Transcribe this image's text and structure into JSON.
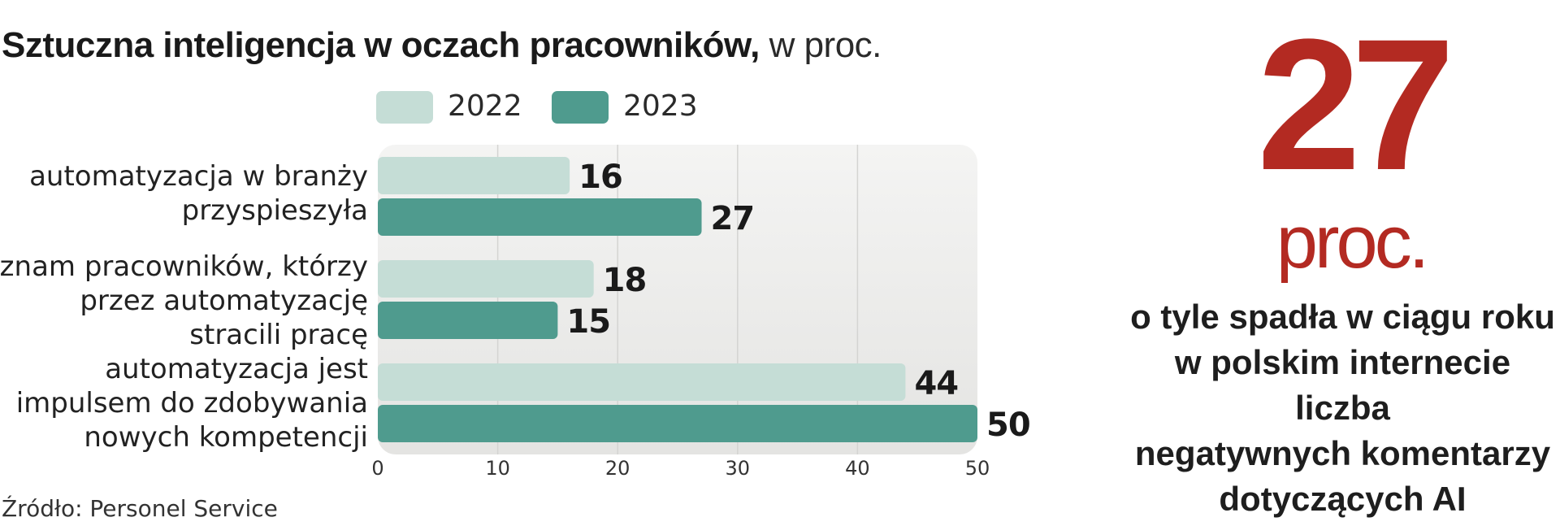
{
  "title_bold": "Sztuczna inteligencja w oczach pracowników,",
  "title_light": " w proc.",
  "source": "Źródło: Personel Service",
  "highlight": {
    "number": "27",
    "unit": "proc.",
    "lines": [
      "o tyle spadła w ciągu roku",
      "w polskim internecie",
      "liczba",
      "negatywnych komentarzy",
      "dotyczących AI"
    ],
    "color": "#b32a22"
  },
  "chart_data": {
    "type": "bar",
    "orientation": "horizontal",
    "categories": [
      [
        "automatyzacja w branży",
        "przyspieszyła"
      ],
      [
        "znam pracowników, którzy",
        "przez automatyzację",
        "stracili pracę"
      ],
      [
        "automatyzacja jest",
        "impulsem do zdobywania",
        "nowych kompetencji"
      ]
    ],
    "series": [
      {
        "name": "2022",
        "values": [
          16,
          18,
          44
        ],
        "color": "#c5ddd6"
      },
      {
        "name": "2023",
        "values": [
          27,
          15,
          50
        ],
        "color": "#4f9b8e"
      }
    ],
    "xlim": [
      0,
      50
    ],
    "xticks": [
      0,
      10,
      20,
      30,
      40,
      50
    ],
    "grid": true,
    "legend_position": "top"
  }
}
